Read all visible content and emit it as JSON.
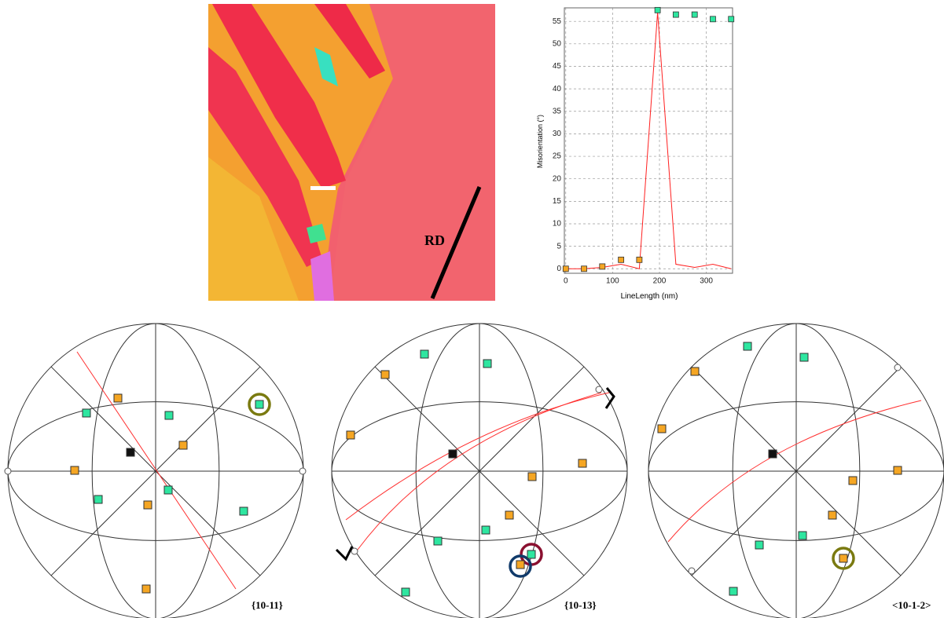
{
  "map": {
    "label": "RD"
  },
  "chart_data": {
    "type": "line",
    "x": [
      0,
      39,
      78,
      118,
      157,
      196,
      235,
      275,
      314,
      353
    ],
    "series": [
      {
        "color": "#ff2020",
        "values": [
          0,
          0,
          0.3,
          1,
          0,
          57,
          1,
          0.3,
          1,
          0
        ]
      },
      {
        "color": "#f5a623",
        "marker": "square",
        "values": [
          0,
          0,
          0.5,
          2,
          2,
          null,
          null,
          null,
          null,
          null
        ]
      },
      {
        "color": "#2ee6a0",
        "marker": "square",
        "values": [
          null,
          null,
          null,
          null,
          null,
          57.5,
          56.5,
          56.5,
          55.5,
          55.5
        ]
      }
    ],
    "xlabel": "LineLength (nm)",
    "ylabel": "Misorientation (°)",
    "xlim": [
      -3,
      356
    ],
    "ylim": [
      -1,
      58
    ],
    "xticks": [
      0,
      100,
      200,
      300
    ],
    "yticks": [
      0,
      5,
      10,
      15,
      20,
      25,
      30,
      35,
      40,
      45,
      50,
      55
    ],
    "grid": true
  },
  "pole_figures": [
    {
      "label": "{10-11}"
    },
    {
      "label": "{10-13}"
    },
    {
      "label": "<10-1-2>"
    }
  ]
}
